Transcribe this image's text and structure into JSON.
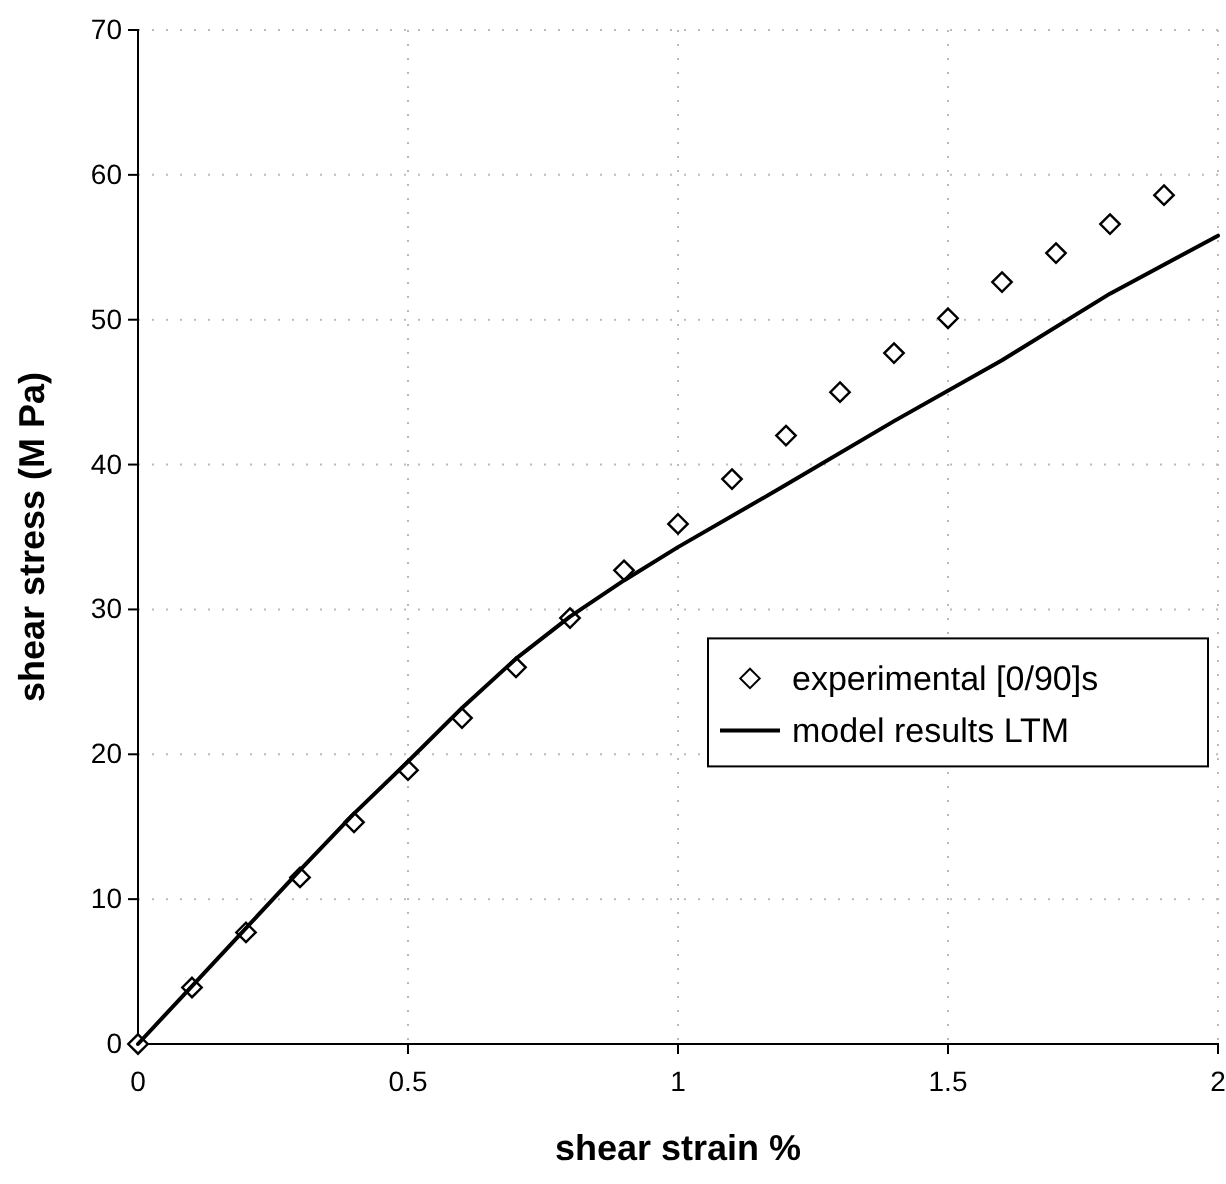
{
  "chart_data": {
    "type": "scatter",
    "xlabel": "shear strain %",
    "ylabel": "shear stress (M Pa)",
    "xlim": [
      0,
      2
    ],
    "xticks": [
      0,
      0.5,
      1,
      1.5,
      2
    ],
    "ylim": [
      0,
      70
    ],
    "yticks": [
      0,
      10,
      20,
      30,
      40,
      50,
      60,
      70
    ],
    "grid": true,
    "legend": "right",
    "series": [
      {
        "name": "experimental [0/90]s",
        "marker": "diamond",
        "color": "#000000",
        "x": [
          0,
          0.1,
          0.2,
          0.3,
          0.4,
          0.5,
          0.6,
          0.7,
          0.8,
          0.9,
          1.0,
          1.1,
          1.2,
          1.3,
          1.4,
          1.5,
          1.6,
          1.7,
          1.8,
          1.9
        ],
        "values": [
          0,
          3.9,
          7.7,
          11.5,
          15.3,
          18.9,
          22.5,
          26.0,
          29.4,
          32.7,
          35.9,
          39.0,
          42.0,
          45.0,
          47.7,
          50.1,
          52.6,
          54.6,
          56.6,
          58.6
        ]
      },
      {
        "name": "model results LTM",
        "type": "line",
        "marker": "none",
        "line_style": "solid",
        "color": "#000000",
        "x": [
          0,
          0.1,
          0.2,
          0.3,
          0.4,
          0.5,
          0.6,
          0.7,
          0.8,
          0.9,
          1.0,
          1.2,
          1.4,
          1.6,
          1.8,
          2.0
        ],
        "values": [
          0,
          4.0,
          8.0,
          12.0,
          15.9,
          19.5,
          23.2,
          26.6,
          29.5,
          32.0,
          34.3,
          38.6,
          43.0,
          47.2,
          51.8,
          55.8
        ]
      }
    ]
  }
}
